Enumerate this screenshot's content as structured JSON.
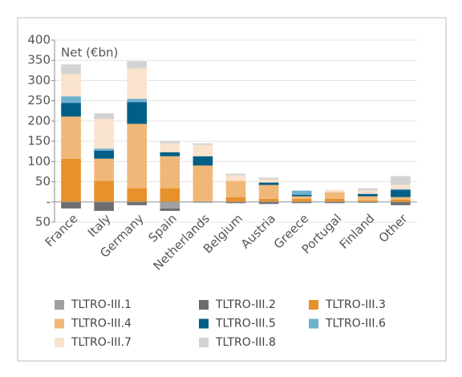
{
  "chart_data": {
    "type": "stacked_bar",
    "y_label": "Net (€bn)",
    "categories": [
      "France",
      "Italy",
      "Germany",
      "Spain",
      "Netherlands",
      "Belgium",
      "Austria",
      "Greece",
      "Portugal",
      "Finland",
      "Other"
    ],
    "series": [
      {
        "name": "TLTRO-III.1",
        "color": "#a0a0a0",
        "values": [
          0,
          0,
          0,
          -16,
          -2,
          0,
          0,
          0,
          0,
          0,
          0
        ]
      },
      {
        "name": "TLTRO-III.2",
        "color": "#6d6d6d",
        "values": [
          -16,
          -22,
          -8,
          -6,
          0,
          -3,
          -5,
          -3,
          -3,
          -2,
          -8
        ]
      },
      {
        "name": "TLTRO-III.3",
        "color": "#e8912a",
        "values": [
          107,
          52,
          34,
          34,
          0,
          12,
          8,
          8,
          8,
          4,
          6
        ]
      },
      {
        "name": "TLTRO-III.4",
        "color": "#f0b878",
        "values": [
          104,
          55,
          159,
          79,
          90,
          40,
          34,
          6,
          16,
          10,
          6
        ]
      },
      {
        "name": "TLTRO-III.5",
        "color": "#005f85",
        "values": [
          34,
          20,
          54,
          10,
          23,
          0,
          6,
          4,
          0,
          6,
          18
        ]
      },
      {
        "name": "TLTRO-III.6",
        "color": "#6fb0cf",
        "values": [
          16,
          5,
          8,
          0,
          0,
          0,
          0,
          10,
          0,
          0,
          2
        ]
      },
      {
        "name": "TLTRO-III.7",
        "color": "#fae3cd",
        "values": [
          55,
          73,
          75,
          22,
          28,
          14,
          8,
          0,
          6,
          8,
          10
        ]
      },
      {
        "name": "TLTRO-III.8",
        "color": "#d3d3d3",
        "values": [
          24,
          14,
          18,
          6,
          4,
          4,
          4,
          0,
          0,
          6,
          22
        ]
      }
    ],
    "ylim": [
      -50,
      400
    ],
    "yticks": [
      {
        "value": -50,
        "label": "50"
      },
      {
        "value": 0,
        "label": "-"
      },
      50,
      100,
      150,
      200,
      250,
      300,
      350,
      400
    ],
    "grid": true
  }
}
